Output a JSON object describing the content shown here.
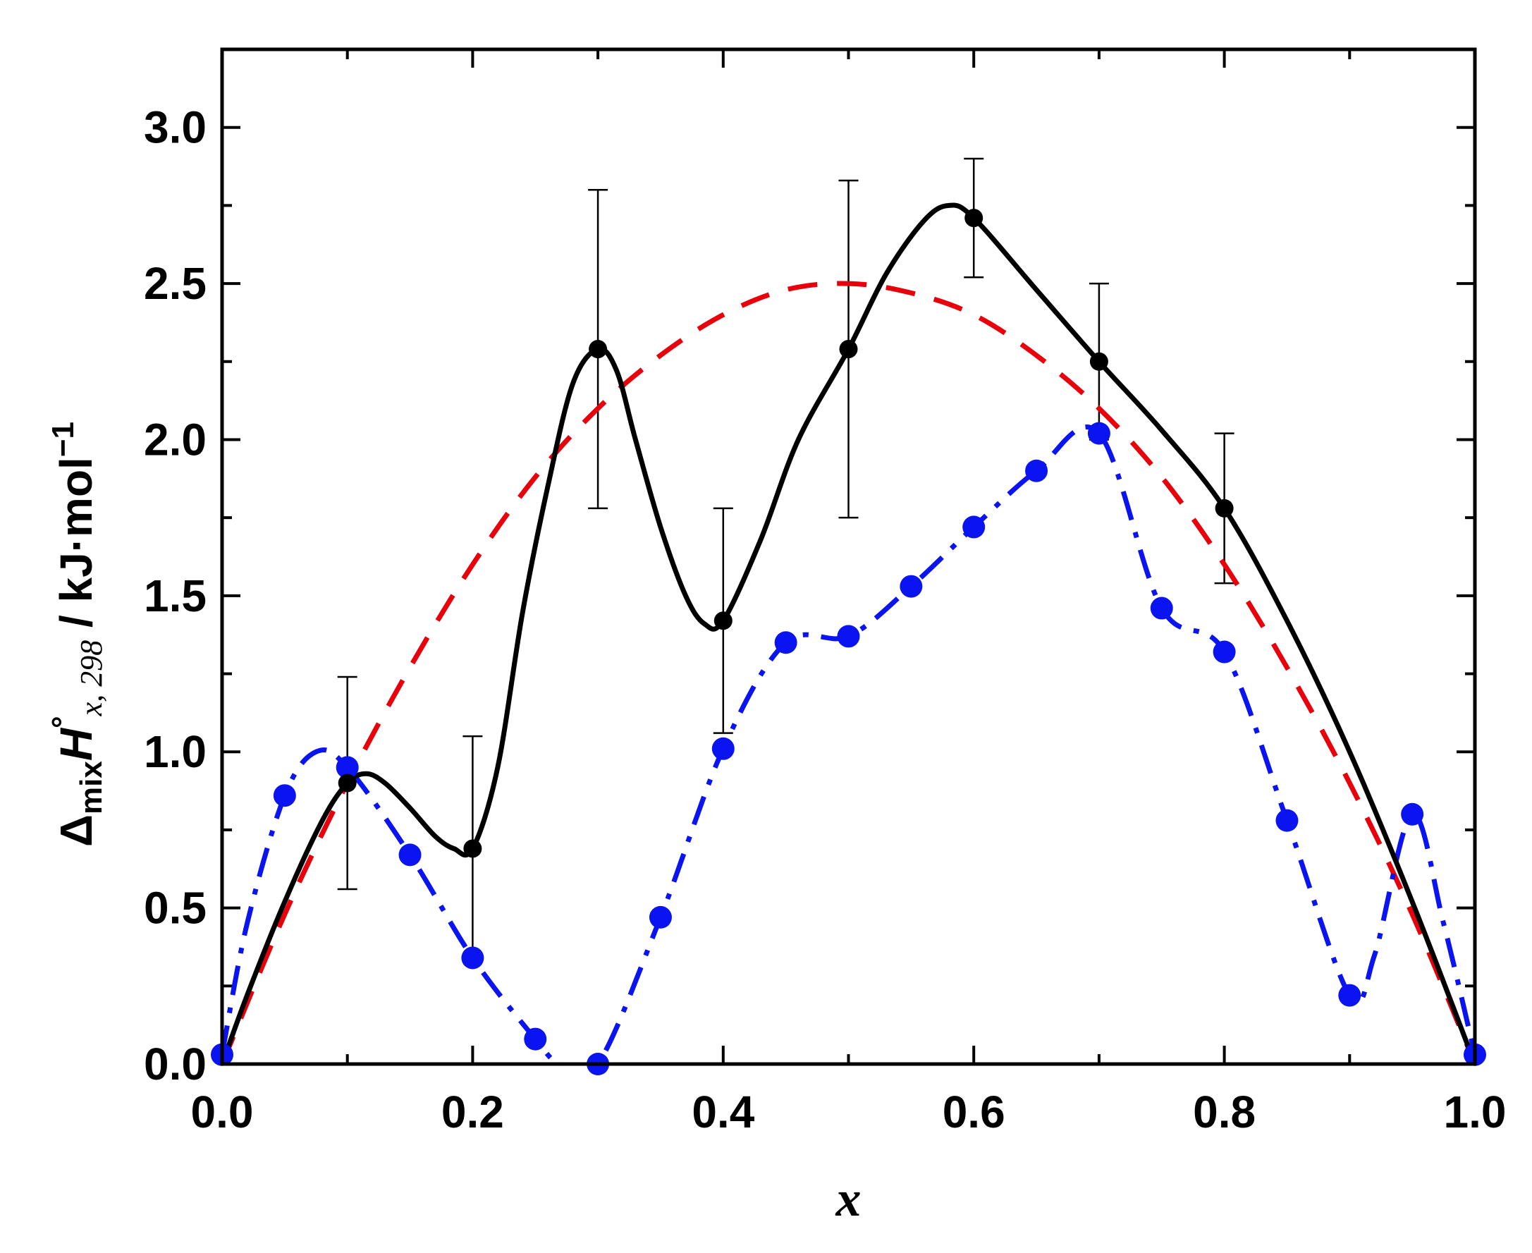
{
  "chart_data": {
    "type": "line",
    "xlabel": "x",
    "ylabel": {
      "prefix": "Δ",
      "sub1": "mix",
      "symbol": "H",
      "sup": "°",
      "sub2": "x, 298",
      "unit": " / kJ·mol",
      "unit_sup": "−1"
    },
    "xlim": [
      0.0,
      1.0
    ],
    "ylim": [
      0.0,
      3.25
    ],
    "xticks": [
      "0.0",
      "0.2",
      "0.4",
      "0.6",
      "0.8",
      "1.0"
    ],
    "yticks": [
      "0.0",
      "0.5",
      "1.0",
      "1.5",
      "2.0",
      "2.5",
      "3.0"
    ],
    "colors": {
      "black": "#000000",
      "red": "#e8000b",
      "blue": "#0a14f0"
    },
    "series": [
      {
        "style": "solid-black-with-markers-and-errorbars",
        "points": [
          {
            "x": 0.0,
            "y": 0.0
          },
          {
            "x": 0.1,
            "y": 0.9,
            "err": 0.34
          },
          {
            "x": 0.2,
            "y": 0.69,
            "err": 0.36
          },
          {
            "x": 0.3,
            "y": 2.29,
            "err": 0.51
          },
          {
            "x": 0.4,
            "y": 1.42,
            "err": 0.36
          },
          {
            "x": 0.5,
            "y": 2.29,
            "err": 0.54
          },
          {
            "x": 0.6,
            "y": 2.71,
            "err": 0.19
          },
          {
            "x": 0.7,
            "y": 2.25,
            "err": 0.25
          },
          {
            "x": 0.8,
            "y": 1.78,
            "err": 0.24
          },
          {
            "x": 1.0,
            "y": 0.0
          }
        ],
        "curve": [
          [
            0.0,
            0.0
          ],
          [
            0.02,
            0.22
          ],
          [
            0.05,
            0.52
          ],
          [
            0.08,
            0.78
          ],
          [
            0.1,
            0.9
          ],
          [
            0.115,
            0.93
          ],
          [
            0.13,
            0.9
          ],
          [
            0.15,
            0.82
          ],
          [
            0.17,
            0.73
          ],
          [
            0.185,
            0.69
          ],
          [
            0.2,
            0.69
          ],
          [
            0.22,
            0.95
          ],
          [
            0.24,
            1.45
          ],
          [
            0.26,
            1.85
          ],
          [
            0.28,
            2.18
          ],
          [
            0.3,
            2.29
          ],
          [
            0.315,
            2.22
          ],
          [
            0.33,
            2.0
          ],
          [
            0.35,
            1.72
          ],
          [
            0.37,
            1.5
          ],
          [
            0.385,
            1.41
          ],
          [
            0.4,
            1.42
          ],
          [
            0.43,
            1.68
          ],
          [
            0.46,
            2.0
          ],
          [
            0.5,
            2.29
          ],
          [
            0.53,
            2.53
          ],
          [
            0.56,
            2.7
          ],
          [
            0.58,
            2.75
          ],
          [
            0.6,
            2.71
          ],
          [
            0.65,
            2.48
          ],
          [
            0.7,
            2.25
          ],
          [
            0.75,
            2.03
          ],
          [
            0.8,
            1.78
          ],
          [
            0.85,
            1.42
          ],
          [
            0.9,
            1.0
          ],
          [
            0.95,
            0.52
          ],
          [
            1.0,
            0.0
          ]
        ]
      },
      {
        "style": "dashed-red",
        "curve": [
          [
            0.0,
            0.0
          ],
          [
            0.05,
            0.48
          ],
          [
            0.1,
            0.9
          ],
          [
            0.15,
            1.27
          ],
          [
            0.2,
            1.6
          ],
          [
            0.25,
            1.88
          ],
          [
            0.3,
            2.1
          ],
          [
            0.35,
            2.27
          ],
          [
            0.4,
            2.4
          ],
          [
            0.45,
            2.48
          ],
          [
            0.5,
            2.5
          ],
          [
            0.55,
            2.47
          ],
          [
            0.6,
            2.4
          ],
          [
            0.65,
            2.27
          ],
          [
            0.7,
            2.1
          ],
          [
            0.75,
            1.88
          ],
          [
            0.8,
            1.6
          ],
          [
            0.85,
            1.27
          ],
          [
            0.9,
            0.9
          ],
          [
            0.95,
            0.48
          ],
          [
            1.0,
            0.0
          ]
        ]
      },
      {
        "style": "dashdot-blue-with-markers",
        "points": [
          {
            "x": 0.0,
            "y": 0.03
          },
          {
            "x": 0.05,
            "y": 0.86
          },
          {
            "x": 0.1,
            "y": 0.95
          },
          {
            "x": 0.15,
            "y": 0.67
          },
          {
            "x": 0.2,
            "y": 0.34
          },
          {
            "x": 0.25,
            "y": 0.08
          },
          {
            "x": 0.3,
            "y": 0.0
          },
          {
            "x": 0.35,
            "y": 0.47
          },
          {
            "x": 0.4,
            "y": 1.01
          },
          {
            "x": 0.45,
            "y": 1.35
          },
          {
            "x": 0.5,
            "y": 1.37
          },
          {
            "x": 0.55,
            "y": 1.53
          },
          {
            "x": 0.6,
            "y": 1.72
          },
          {
            "x": 0.65,
            "y": 1.9
          },
          {
            "x": 0.7,
            "y": 2.02
          },
          {
            "x": 0.75,
            "y": 1.46
          },
          {
            "x": 0.8,
            "y": 1.32
          },
          {
            "x": 0.85,
            "y": 0.78
          },
          {
            "x": 0.9,
            "y": 0.22
          },
          {
            "x": 0.95,
            "y": 0.8
          },
          {
            "x": 1.0,
            "y": 0.03
          }
        ],
        "curve": [
          [
            0.0,
            0.03
          ],
          [
            0.02,
            0.45
          ],
          [
            0.05,
            0.86
          ],
          [
            0.075,
            1.0
          ],
          [
            0.1,
            0.95
          ],
          [
            0.15,
            0.67
          ],
          [
            0.2,
            0.34
          ],
          [
            0.25,
            0.08
          ],
          [
            0.27,
            0.0
          ],
          [
            0.3,
            0.0
          ],
          [
            0.35,
            0.47
          ],
          [
            0.4,
            1.01
          ],
          [
            0.45,
            1.35
          ],
          [
            0.5,
            1.37
          ],
          [
            0.55,
            1.53
          ],
          [
            0.6,
            1.72
          ],
          [
            0.65,
            1.9
          ],
          [
            0.7,
            2.02
          ],
          [
            0.75,
            1.46
          ],
          [
            0.8,
            1.32
          ],
          [
            0.85,
            0.78
          ],
          [
            0.9,
            0.22
          ],
          [
            0.92,
            0.35
          ],
          [
            0.95,
            0.8
          ],
          [
            0.975,
            0.45
          ],
          [
            1.0,
            0.03
          ]
        ]
      }
    ]
  }
}
